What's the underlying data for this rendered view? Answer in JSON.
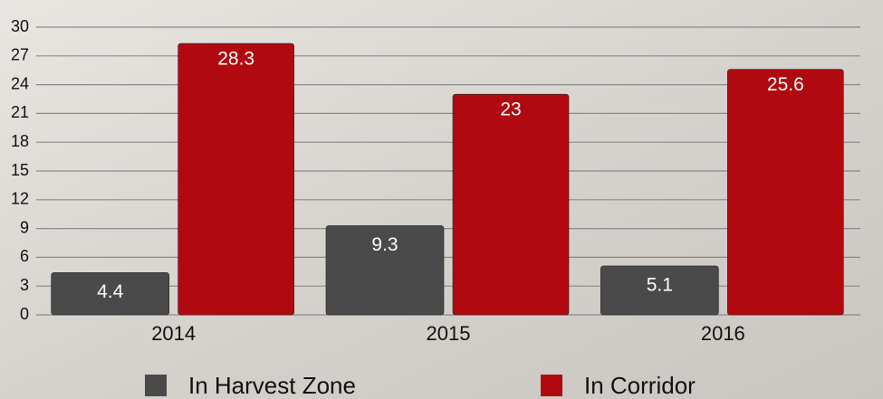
{
  "chart_data": {
    "type": "bar",
    "categories": [
      "2014",
      "2015",
      "2016"
    ],
    "series": [
      {
        "name": "In Harvest Zone",
        "color": "#4a4a4a",
        "values": [
          4.4,
          9.3,
          5.1
        ]
      },
      {
        "name": "In Corridor",
        "color": "#b00a10",
        "values": [
          28.3,
          23,
          25.6
        ]
      }
    ],
    "ylim": [
      0,
      30
    ],
    "yticks": [
      0,
      3,
      6,
      9,
      12,
      15,
      18,
      21,
      24,
      27,
      30
    ],
    "grid": true,
    "data_labels": true,
    "legend": "bottom"
  }
}
